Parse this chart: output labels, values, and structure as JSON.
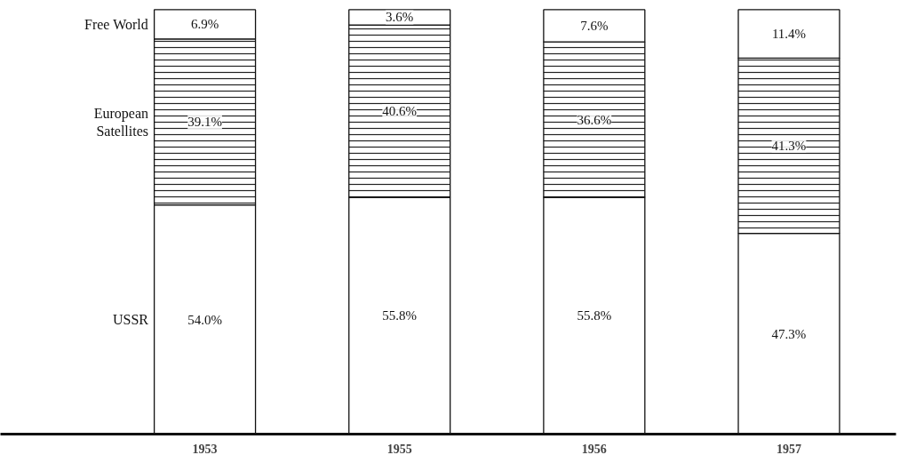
{
  "chart_data": {
    "type": "bar",
    "stacked": true,
    "categories": [
      "1953",
      "1955",
      "1956",
      "1957"
    ],
    "series": [
      {
        "name": "USSR",
        "color": "#ffffff",
        "values": [
          54.0,
          55.8,
          55.8,
          47.3
        ],
        "value_labels": [
          "54.0%",
          "55.8%",
          "55.8%",
          "47.3%"
        ]
      },
      {
        "name": "European\nSatellites",
        "color": "#ffffff",
        "values": [
          39.1,
          40.6,
          36.6,
          41.3
        ],
        "value_labels": [
          "39.1%",
          "40.6%",
          "36.6%",
          "41.3%"
        ]
      },
      {
        "name": "Free World",
        "color": "#ffffff",
        "values": [
          6.9,
          3.6,
          7.6,
          11.4
        ],
        "value_labels": [
          "6.9%",
          "3.6%",
          "7.6%",
          "11.4%"
        ]
      }
    ]
  }
}
